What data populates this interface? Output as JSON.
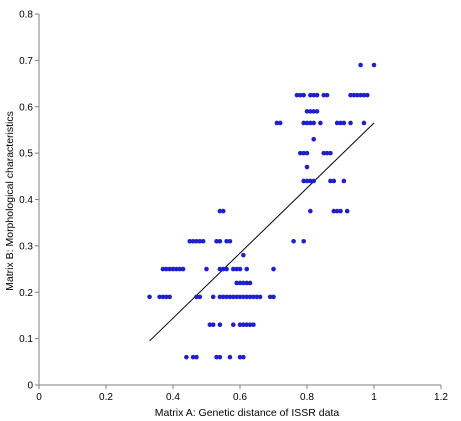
{
  "chart_data": {
    "type": "scatter",
    "title": "",
    "xlabel": "Matrix A: Genetic distance of ISSR data",
    "ylabel": "Matrix B: Morphological characteristics",
    "xlim": [
      0,
      1.2
    ],
    "ylim": [
      0,
      0.8
    ],
    "x_ticks": [
      "0",
      "0.2",
      "0.4",
      "0.6",
      "0.8",
      "1",
      "1.2"
    ],
    "y_ticks": [
      "0",
      "0.1",
      "0.2",
      "0.3",
      "0.4",
      "0.5",
      "0.6",
      "0.7",
      "0.8"
    ],
    "grid": false,
    "legend": false,
    "point_color": "#1f1fcc",
    "line_color": "#000000",
    "trendline": {
      "x": [
        0.33,
        1.0
      ],
      "y": [
        0.095,
        0.565
      ]
    },
    "points": [
      [
        0.33,
        0.19
      ],
      [
        0.36,
        0.19
      ],
      [
        0.37,
        0.19
      ],
      [
        0.38,
        0.19
      ],
      [
        0.39,
        0.19
      ],
      [
        0.37,
        0.25
      ],
      [
        0.38,
        0.25
      ],
      [
        0.39,
        0.25
      ],
      [
        0.4,
        0.25
      ],
      [
        0.41,
        0.25
      ],
      [
        0.42,
        0.25
      ],
      [
        0.43,
        0.25
      ],
      [
        0.45,
        0.31
      ],
      [
        0.46,
        0.31
      ],
      [
        0.47,
        0.31
      ],
      [
        0.48,
        0.31
      ],
      [
        0.49,
        0.31
      ],
      [
        0.44,
        0.06
      ],
      [
        0.46,
        0.06
      ],
      [
        0.47,
        0.06
      ],
      [
        0.47,
        0.19
      ],
      [
        0.48,
        0.19
      ],
      [
        0.5,
        0.25
      ],
      [
        0.51,
        0.13
      ],
      [
        0.52,
        0.19
      ],
      [
        0.53,
        0.31
      ],
      [
        0.54,
        0.31
      ],
      [
        0.56,
        0.31
      ],
      [
        0.57,
        0.31
      ],
      [
        0.54,
        0.375
      ],
      [
        0.55,
        0.375
      ],
      [
        0.53,
        0.06
      ],
      [
        0.54,
        0.06
      ],
      [
        0.52,
        0.13
      ],
      [
        0.54,
        0.13
      ],
      [
        0.54,
        0.19
      ],
      [
        0.55,
        0.19
      ],
      [
        0.56,
        0.19
      ],
      [
        0.57,
        0.19
      ],
      [
        0.58,
        0.19
      ],
      [
        0.59,
        0.19
      ],
      [
        0.6,
        0.19
      ],
      [
        0.61,
        0.19
      ],
      [
        0.62,
        0.19
      ],
      [
        0.63,
        0.19
      ],
      [
        0.64,
        0.19
      ],
      [
        0.65,
        0.19
      ],
      [
        0.54,
        0.25
      ],
      [
        0.55,
        0.25
      ],
      [
        0.56,
        0.25
      ],
      [
        0.58,
        0.25
      ],
      [
        0.59,
        0.25
      ],
      [
        0.6,
        0.25
      ],
      [
        0.62,
        0.25
      ],
      [
        0.57,
        0.06
      ],
      [
        0.6,
        0.06
      ],
      [
        0.61,
        0.06
      ],
      [
        0.58,
        0.13
      ],
      [
        0.6,
        0.13
      ],
      [
        0.61,
        0.13
      ],
      [
        0.62,
        0.13
      ],
      [
        0.63,
        0.13
      ],
      [
        0.64,
        0.13
      ],
      [
        0.59,
        0.22
      ],
      [
        0.6,
        0.22
      ],
      [
        0.61,
        0.22
      ],
      [
        0.62,
        0.22
      ],
      [
        0.63,
        0.22
      ],
      [
        0.61,
        0.28
      ],
      [
        0.66,
        0.19
      ],
      [
        0.69,
        0.19
      ],
      [
        0.7,
        0.19
      ],
      [
        0.7,
        0.25
      ],
      [
        0.71,
        0.565
      ],
      [
        0.72,
        0.565
      ],
      [
        0.76,
        0.31
      ],
      [
        0.79,
        0.31
      ],
      [
        0.77,
        0.625
      ],
      [
        0.78,
        0.625
      ],
      [
        0.79,
        0.625
      ],
      [
        0.81,
        0.625
      ],
      [
        0.82,
        0.625
      ],
      [
        0.83,
        0.625
      ],
      [
        0.78,
        0.5
      ],
      [
        0.79,
        0.5
      ],
      [
        0.8,
        0.5
      ],
      [
        0.79,
        0.565
      ],
      [
        0.8,
        0.565
      ],
      [
        0.81,
        0.565
      ],
      [
        0.82,
        0.565
      ],
      [
        0.79,
        0.44
      ],
      [
        0.8,
        0.44
      ],
      [
        0.81,
        0.44
      ],
      [
        0.8,
        0.47
      ],
      [
        0.81,
        0.375
      ],
      [
        0.8,
        0.59
      ],
      [
        0.81,
        0.59
      ],
      [
        0.82,
        0.59
      ],
      [
        0.83,
        0.59
      ],
      [
        0.82,
        0.53
      ],
      [
        0.82,
        0.44
      ],
      [
        0.85,
        0.5
      ],
      [
        0.86,
        0.5
      ],
      [
        0.87,
        0.5
      ],
      [
        0.85,
        0.625
      ],
      [
        0.86,
        0.625
      ],
      [
        0.84,
        0.565
      ],
      [
        0.87,
        0.44
      ],
      [
        0.88,
        0.44
      ],
      [
        0.88,
        0.375
      ],
      [
        0.89,
        0.375
      ],
      [
        0.9,
        0.375
      ],
      [
        0.89,
        0.565
      ],
      [
        0.9,
        0.565
      ],
      [
        0.91,
        0.565
      ],
      [
        0.91,
        0.44
      ],
      [
        0.92,
        0.375
      ],
      [
        0.93,
        0.625
      ],
      [
        0.94,
        0.625
      ],
      [
        0.95,
        0.625
      ],
      [
        0.96,
        0.625
      ],
      [
        0.97,
        0.625
      ],
      [
        0.98,
        0.625
      ],
      [
        0.93,
        0.565
      ],
      [
        0.96,
        0.69
      ],
      [
        0.97,
        0.565
      ],
      [
        1.0,
        0.69
      ]
    ]
  }
}
